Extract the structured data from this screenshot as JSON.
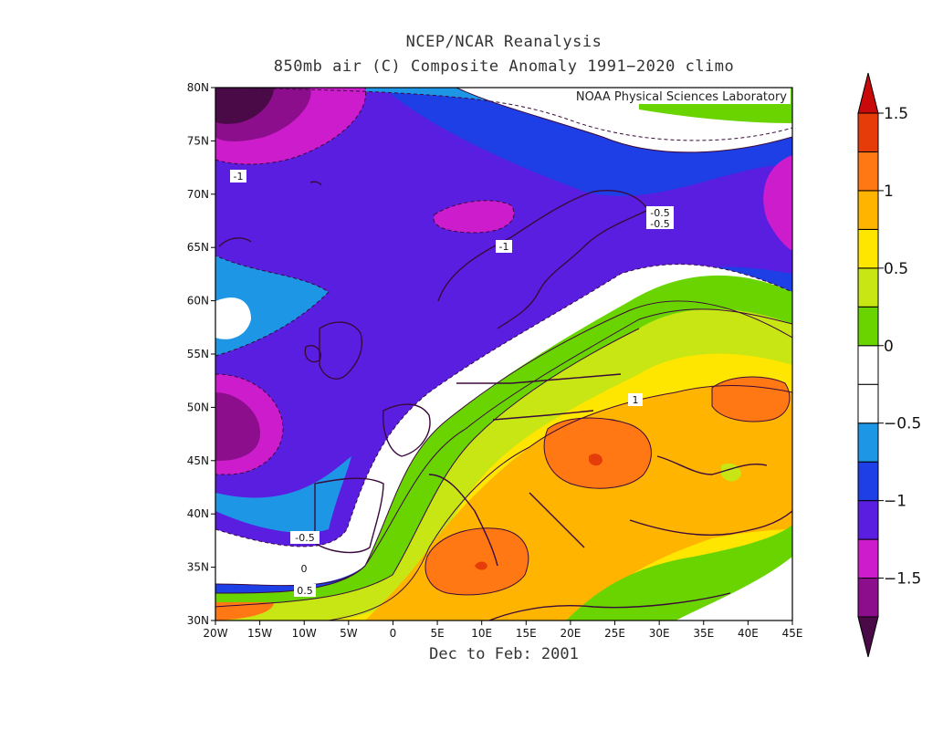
{
  "title": {
    "line1": "NCEP/NCAR Reanalysis",
    "line2": "850mb air (C) Composite Anomaly 1991−2020 climo"
  },
  "footer": "Dec to Feb: 2001",
  "credit": "NOAA Physical Sciences Laboratory",
  "axes": {
    "lon_labels": [
      "20W",
      "15W",
      "10W",
      "5W",
      "0",
      "5E",
      "10E",
      "15E",
      "20E",
      "25E",
      "30E",
      "35E",
      "40E",
      "45E"
    ],
    "lat_labels": [
      "30N",
      "35N",
      "40N",
      "45N",
      "50N",
      "55N",
      "60N",
      "65N",
      "70N",
      "75N",
      "80N"
    ]
  },
  "colorbar": {
    "labels": [
      "1.5",
      "1",
      "0.5",
      "0",
      "−0.5",
      "−1",
      "−1.5"
    ],
    "colors": [
      "#4a0a48",
      "#8c0e8c",
      "#cc1ccc",
      "#5a1ee0",
      "#1e3ee6",
      "#1e96e6",
      "#ffffff",
      "#ffffff",
      "#6ad400",
      "#c8e614",
      "#ffe600",
      "#ffb400",
      "#ff7814",
      "#e63c0a",
      "#c80a0a"
    ]
  },
  "contour_labels": [
    {
      "text": "-1"
    },
    {
      "text": "-1"
    },
    {
      "text": "-0.5"
    },
    {
      "text": "-0.5"
    },
    {
      "text": "1"
    },
    {
      "text": "-0.5"
    },
    {
      "text": "0"
    },
    {
      "text": "0.5"
    }
  ]
}
